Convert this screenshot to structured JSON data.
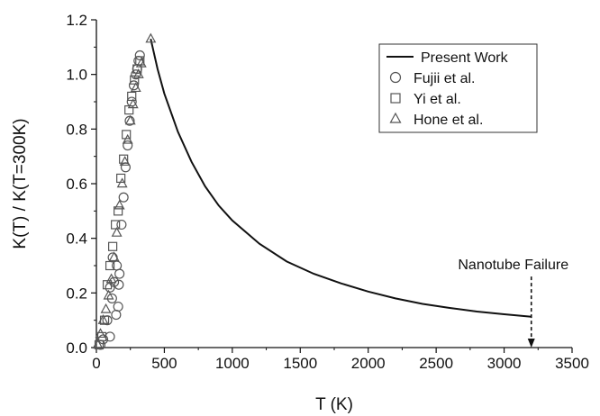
{
  "chart_data": {
    "type": "line",
    "xlabel": "T (K)",
    "ylabel": "K(T) / K(T=300K)",
    "xlim": [
      0,
      3500
    ],
    "ylim": [
      0,
      1.2
    ],
    "x_ticks": [
      0,
      500,
      1000,
      1500,
      2000,
      2500,
      3000,
      3500
    ],
    "y_ticks": [
      0.0,
      0.2,
      0.4,
      0.6,
      0.8,
      1.0,
      1.2
    ],
    "x_tick_labels": [
      "0",
      "500",
      "1000",
      "1500",
      "2000",
      "2500",
      "3000",
      "3500"
    ],
    "y_tick_labels": [
      "0.0",
      "0.2",
      "0.4",
      "0.6",
      "0.8",
      "1.0",
      "1.2"
    ],
    "grid": false,
    "legend_position": "top-right",
    "series": [
      {
        "name": "Present Work",
        "type": "line",
        "marker": "none",
        "x": [
          400,
          450,
          500,
          600,
          700,
          800,
          900,
          1000,
          1200,
          1400,
          1600,
          1800,
          2000,
          2200,
          2400,
          2600,
          2800,
          3000,
          3200
        ],
        "y": [
          1.13,
          1.02,
          0.93,
          0.79,
          0.68,
          0.59,
          0.52,
          0.465,
          0.38,
          0.315,
          0.27,
          0.235,
          0.205,
          0.18,
          0.16,
          0.145,
          0.132,
          0.122,
          0.113
        ]
      },
      {
        "name": "Fujii et al.",
        "type": "scatter",
        "marker": "circle",
        "x": [
          30,
          50,
          80,
          100,
          115,
          130,
          145,
          160,
          170,
          185,
          200,
          215,
          230,
          245,
          260,
          275,
          290,
          300,
          310,
          320,
          150,
          165,
          100,
          120
        ],
        "y": [
          0.01,
          0.03,
          0.1,
          0.04,
          0.18,
          0.24,
          0.12,
          0.15,
          0.27,
          0.45,
          0.55,
          0.66,
          0.74,
          0.83,
          0.9,
          0.96,
          1.0,
          1.02,
          1.05,
          1.07,
          0.3,
          0.23,
          0.22,
          0.33
        ]
      },
      {
        "name": "Yi et al.",
        "type": "scatter",
        "marker": "square",
        "x": [
          20,
          40,
          60,
          80,
          100,
          120,
          140,
          160,
          180,
          200,
          220,
          240,
          260,
          280,
          300,
          320
        ],
        "y": [
          0.01,
          0.04,
          0.1,
          0.23,
          0.3,
          0.37,
          0.45,
          0.5,
          0.62,
          0.69,
          0.78,
          0.87,
          0.92,
          0.98,
          1.02,
          1.05
        ]
      },
      {
        "name": "Hone et al.",
        "type": "scatter",
        "marker": "triangle",
        "x": [
          10,
          30,
          50,
          70,
          90,
          110,
          130,
          150,
          170,
          190,
          210,
          230,
          250,
          270,
          290,
          310,
          330,
          400
        ],
        "y": [
          0.01,
          0.05,
          0.1,
          0.14,
          0.19,
          0.25,
          0.33,
          0.42,
          0.52,
          0.6,
          0.68,
          0.76,
          0.83,
          0.89,
          0.95,
          1.0,
          1.04,
          1.13
        ]
      }
    ],
    "annotation": {
      "text": "Nanotube Failure",
      "x": 3200,
      "y_top": 0.26,
      "y_bottom": 0.0
    }
  }
}
